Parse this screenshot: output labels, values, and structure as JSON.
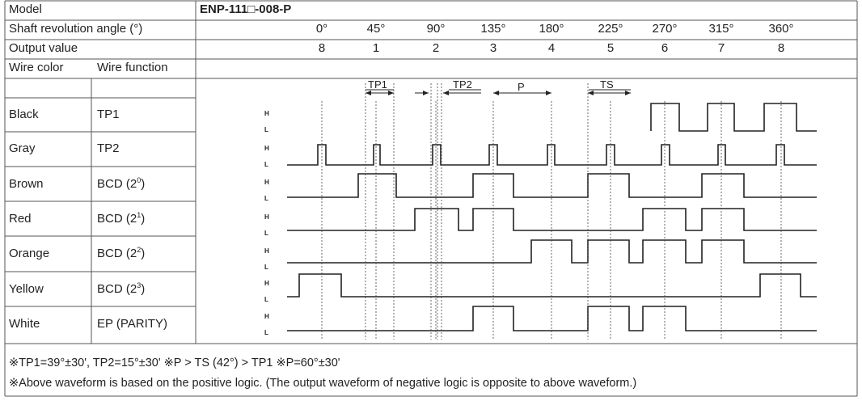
{
  "header": {
    "model_label": "Model",
    "model_value": "ENP-111□-008-P",
    "angle_label": "Shaft revolution angle (°)",
    "angles": [
      "0°",
      "45°",
      "90°",
      "135°",
      "180°",
      "225°",
      "270°",
      "315°",
      "360°"
    ],
    "output_label": "Output value",
    "outputs": [
      "8",
      "1",
      "2",
      "3",
      "4",
      "5",
      "6",
      "7",
      "8"
    ]
  },
  "columns": {
    "wire_color": "Wire color",
    "wire_function": "Wire function"
  },
  "timing_labels": {
    "tp1": "TP1",
    "tp2": "TP2",
    "p": "P",
    "ts": "TS"
  },
  "level_labels": {
    "high": "H",
    "low": "L"
  },
  "wires": [
    {
      "color": "Black",
      "func_base": "TP1",
      "func_exp": ""
    },
    {
      "color": "Gray",
      "func_base": "TP2",
      "func_exp": ""
    },
    {
      "color": "Brown",
      "func_base": "BCD (2",
      "func_exp": "0"
    },
    {
      "color": "Red",
      "func_base": "BCD (2",
      "func_exp": "1"
    },
    {
      "color": "Orange",
      "func_base": "BCD (2",
      "func_exp": "2"
    },
    {
      "color": "Yellow",
      "func_base": "BCD (2",
      "func_exp": "3"
    },
    {
      "color": "White",
      "func_base": "EP (PARITY)",
      "func_exp": ""
    }
  ],
  "notes": [
    "※TP1=39°±30', TP2=15°±30' ※P > TS (42°) > TP1 ※P=60°±30'",
    "※Above waveform is based on the positive logic. (The output waveform of negative logic is opposite to above waveform.)"
  ]
}
